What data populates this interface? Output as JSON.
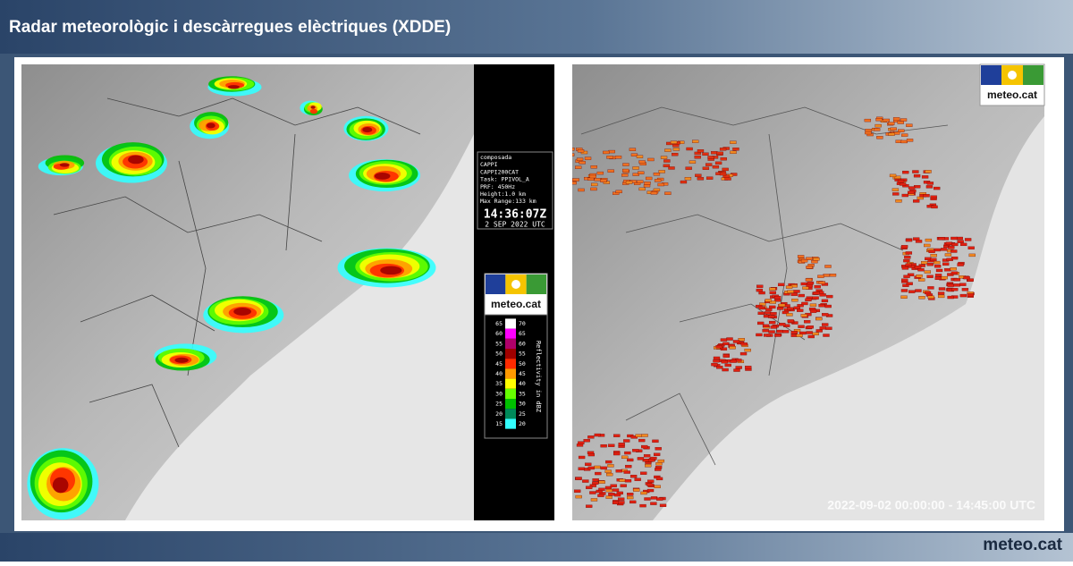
{
  "header": {
    "title": "Radar meteorològic i descàrregues elèctriques (XDDE)"
  },
  "radar": {
    "info": [
      "composada",
      "CAPPI",
      "CAPPI200CAT",
      "Task: PPIVOL_A",
      "PRF: 450Hz",
      "Height:1.0 km",
      "Max Range:133 km"
    ],
    "time": "14:36:07Z",
    "date": "2 SEP 2022 UTC",
    "legend": {
      "unit_label": "Reflectivity in dBZ",
      "rows": [
        {
          "low": 65,
          "high": 70,
          "color": "#ffffff"
        },
        {
          "low": 60,
          "high": 65,
          "color": "#ff00ff"
        },
        {
          "low": 55,
          "high": 60,
          "color": "#b0006a"
        },
        {
          "low": 50,
          "high": 55,
          "color": "#a00000"
        },
        {
          "low": 45,
          "high": 50,
          "color": "#ff2a00"
        },
        {
          "low": 40,
          "high": 45,
          "color": "#ff9900"
        },
        {
          "low": 35,
          "high": 40,
          "color": "#ffff00"
        },
        {
          "low": 30,
          "high": 35,
          "color": "#66ff00"
        },
        {
          "low": 25,
          "high": 30,
          "color": "#00c000"
        },
        {
          "low": 20,
          "high": 25,
          "color": "#008a5a"
        },
        {
          "low": 15,
          "high": 20,
          "color": "#33ffff"
        }
      ]
    }
  },
  "logo_text": "meteo.cat",
  "lightning": {
    "period": "2022-09-02 00:00:00 - 14:45:00 UTC"
  },
  "footer": {
    "brand": "meteo.cat"
  }
}
